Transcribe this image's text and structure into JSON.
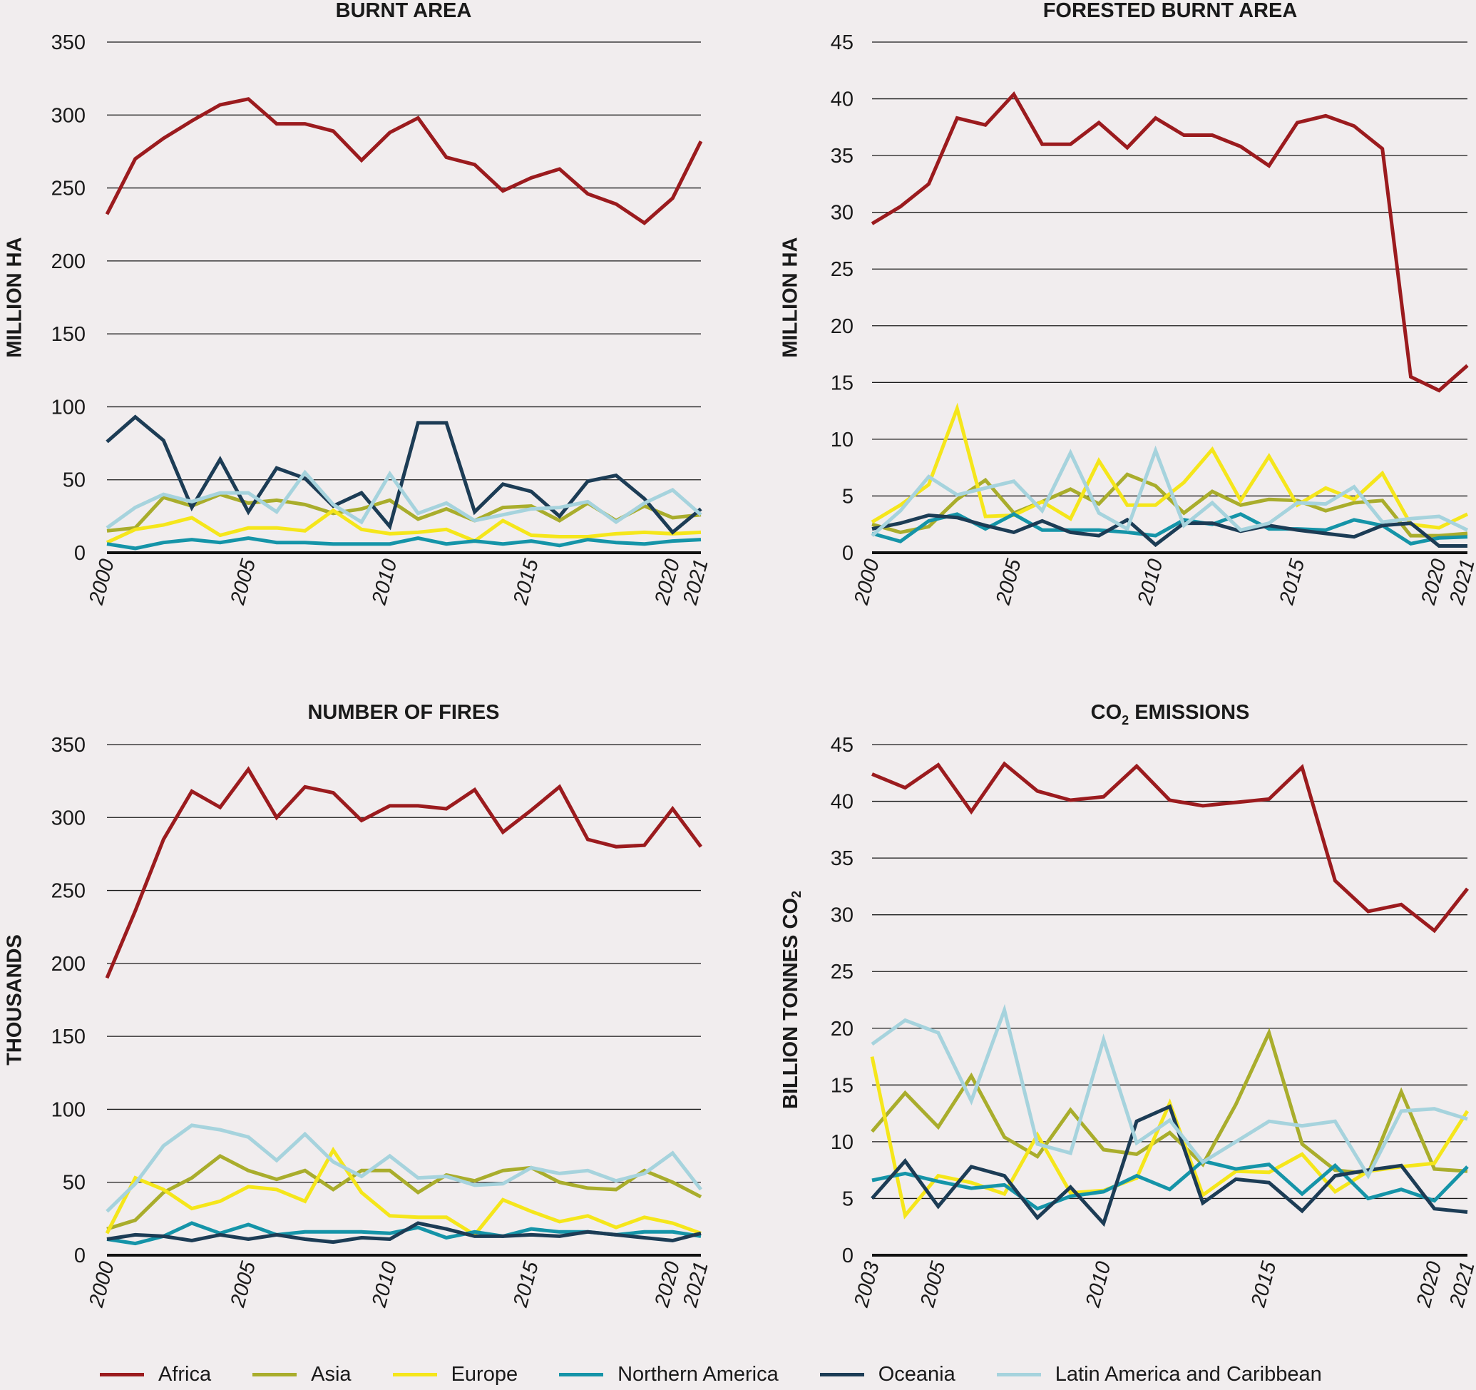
{
  "legend": [
    {
      "name": "Africa",
      "color": "#9b1b1e"
    },
    {
      "name": "Asia",
      "color": "#a9ad2c"
    },
    {
      "name": "Europe",
      "color": "#f5e61b"
    },
    {
      "name": "Northern America",
      "color": "#1594a8"
    },
    {
      "name": "Oceania",
      "color": "#1c3c55"
    },
    {
      "name": "Latin America and Caribbean",
      "color": "#a6d3dd"
    }
  ],
  "chart_data": [
    {
      "type": "line",
      "title": "BURNT AREA",
      "ylabel": "MILLION HA",
      "ylim": [
        0,
        350
      ],
      "yticks": [
        0,
        50,
        100,
        150,
        200,
        250,
        300,
        350
      ],
      "xlim": [
        2000,
        2021
      ],
      "xticks": [
        2000,
        2005,
        2010,
        2015,
        2020,
        2021
      ],
      "x": [
        2000,
        2001,
        2002,
        2003,
        2004,
        2005,
        2006,
        2007,
        2008,
        2009,
        2010,
        2011,
        2012,
        2013,
        2014,
        2015,
        2016,
        2017,
        2018,
        2019,
        2020,
        2021
      ],
      "series": [
        {
          "name": "Africa",
          "values": [
            232,
            270,
            284,
            296,
            307,
            311,
            294,
            294,
            289,
            269,
            288,
            298,
            271,
            266,
            248,
            257,
            263,
            246,
            239,
            226,
            243,
            282
          ]
        },
        {
          "name": "Asia",
          "values": [
            15,
            17,
            38,
            32,
            40,
            34,
            36,
            33,
            27,
            30,
            36,
            23,
            30,
            22,
            31,
            32,
            22,
            34,
            22,
            32,
            24,
            26
          ]
        },
        {
          "name": "Europe",
          "values": [
            7,
            16,
            19,
            24,
            12,
            17,
            17,
            15,
            29,
            16,
            13,
            14,
            16,
            8,
            22,
            12,
            11,
            11,
            13,
            14,
            13,
            14
          ]
        },
        {
          "name": "Northern America",
          "values": [
            6,
            3,
            7,
            9,
            7,
            10,
            7,
            7,
            6,
            6,
            6,
            10,
            6,
            8,
            6,
            8,
            5,
            9,
            7,
            6,
            8,
            9
          ]
        },
        {
          "name": "Oceania",
          "values": [
            76,
            93,
            77,
            31,
            64,
            28,
            58,
            51,
            32,
            41,
            18,
            89,
            89,
            28,
            47,
            42,
            25,
            49,
            53,
            37,
            14,
            30
          ]
        },
        {
          "name": "Latin America and Caribbean",
          "values": [
            17,
            31,
            40,
            35,
            41,
            41,
            28,
            55,
            33,
            21,
            54,
            27,
            34,
            22,
            26,
            30,
            31,
            35,
            21,
            34,
            43,
            26
          ]
        }
      ]
    },
    {
      "type": "line",
      "title": "FORESTED BURNT AREA",
      "ylabel": "MILLION HA",
      "ylim": [
        0,
        45
      ],
      "yticks": [
        0,
        5,
        10,
        15,
        20,
        25,
        30,
        35,
        40,
        45
      ],
      "xlim": [
        2000,
        2021
      ],
      "xticks": [
        2000,
        2005,
        2010,
        2015,
        2020,
        2021
      ],
      "x": [
        2000,
        2001,
        2002,
        2003,
        2004,
        2005,
        2006,
        2007,
        2008,
        2009,
        2010,
        2011,
        2012,
        2013,
        2014,
        2015,
        2016,
        2017,
        2018,
        2019,
        2020,
        2021
      ],
      "series": [
        {
          "name": "Africa",
          "values": [
            29,
            30.5,
            32.5,
            38.3,
            37.7,
            40.4,
            36,
            36,
            37.9,
            35.7,
            38.3,
            36.8,
            36.8,
            35.8,
            34.1,
            37.9,
            38.5,
            37.6,
            35.6,
            15.5,
            14.3,
            16.5
          ]
        },
        {
          "name": "Asia",
          "values": [
            2.5,
            1.8,
            2.3,
            4.7,
            6.4,
            3.5,
            4.5,
            5.6,
            4.3,
            6.9,
            5.9,
            3.5,
            5.4,
            4.2,
            4.7,
            4.6,
            3.7,
            4.4,
            4.6,
            1.5,
            1.5,
            1.7
          ]
        },
        {
          "name": "Europe",
          "values": [
            2.7,
            4.2,
            6.0,
            12.7,
            3.2,
            3.3,
            4.5,
            3.0,
            8.1,
            4.2,
            4.2,
            6.2,
            9.1,
            4.6,
            8.5,
            4.2,
            5.7,
            4.7,
            7.0,
            2.5,
            2.2,
            3.4
          ]
        },
        {
          "name": "Northern America",
          "values": [
            1.7,
            1.0,
            2.8,
            3.4,
            2.1,
            3.4,
            2.0,
            2.0,
            2.0,
            1.8,
            1.5,
            2.9,
            2.5,
            3.4,
            2.1,
            2.1,
            2.0,
            2.9,
            2.4,
            0.8,
            1.3,
            1.4
          ]
        },
        {
          "name": "Oceania",
          "values": [
            2.1,
            2.6,
            3.3,
            3.1,
            2.4,
            1.8,
            2.8,
            1.8,
            1.5,
            2.9,
            0.7,
            2.6,
            2.6,
            1.9,
            2.4,
            2.0,
            1.7,
            1.4,
            2.4,
            2.6,
            0.6,
            0.6
          ]
        },
        {
          "name": "Latin America and Caribbean",
          "values": [
            1.5,
            3.7,
            6.7,
            5.1,
            5.7,
            6.3,
            3.7,
            8.8,
            3.5,
            2.1,
            9.0,
            2.4,
            4.4,
            2.0,
            2.6,
            4.4,
            4.3,
            5.8,
            2.7,
            3.0,
            3.2,
            2.0
          ]
        }
      ]
    },
    {
      "type": "line",
      "title": "NUMBER OF FIRES",
      "ylabel": "THOUSANDS",
      "ylim": [
        0,
        350
      ],
      "yticks": [
        0,
        50,
        100,
        150,
        200,
        250,
        300,
        350
      ],
      "xlim": [
        2000,
        2021
      ],
      "xticks": [
        2000,
        2005,
        2010,
        2015,
        2020,
        2021
      ],
      "x": [
        2000,
        2001,
        2002,
        2003,
        2004,
        2005,
        2006,
        2007,
        2008,
        2009,
        2010,
        2011,
        2012,
        2013,
        2014,
        2015,
        2016,
        2017,
        2018,
        2019,
        2020,
        2021
      ],
      "series": [
        {
          "name": "Africa",
          "values": [
            190,
            236,
            285,
            318,
            307,
            333,
            300,
            321,
            317,
            298,
            308,
            308,
            306,
            319,
            290,
            305,
            321,
            285,
            280,
            281,
            306,
            280
          ]
        },
        {
          "name": "Asia",
          "values": [
            18,
            24,
            43,
            53,
            68,
            58,
            52,
            58,
            45,
            58,
            58,
            43,
            55,
            51,
            58,
            60,
            50,
            46,
            45,
            58,
            50,
            40
          ]
        },
        {
          "name": "Europe",
          "values": [
            15,
            53,
            45,
            32,
            37,
            47,
            45,
            37,
            72,
            43,
            27,
            26,
            26,
            14,
            38,
            30,
            23,
            27,
            19,
            26,
            22,
            15
          ]
        },
        {
          "name": "Northern America",
          "values": [
            11,
            8,
            13,
            22,
            15,
            21,
            14,
            16,
            16,
            16,
            15,
            19,
            12,
            16,
            13,
            18,
            16,
            16,
            14,
            16,
            16,
            13
          ]
        },
        {
          "name": "Oceania",
          "values": [
            11,
            14,
            13,
            10,
            14,
            11,
            14,
            11,
            9,
            12,
            11,
            22,
            18,
            13,
            13,
            14,
            13,
            16,
            14,
            12,
            10,
            15
          ]
        },
        {
          "name": "Latin America and Caribbean",
          "values": [
            30,
            49,
            75,
            89,
            86,
            81,
            65,
            83,
            64,
            54,
            68,
            53,
            54,
            48,
            49,
            60,
            56,
            58,
            51,
            56,
            70,
            45
          ]
        }
      ]
    },
    {
      "type": "line",
      "title": "CO2 EMISSIONS",
      "title_main": "CO",
      "title_sub": "2",
      "title_rest": " EMISSIONS",
      "ylabel": "BILLION TONNES CO2",
      "ylabel_main": "BILLION TONNES CO",
      "ylabel_sub": "2",
      "ylim": [
        0,
        45
      ],
      "yticks": [
        0,
        5,
        10,
        15,
        20,
        25,
        30,
        35,
        40,
        45
      ],
      "xlim": [
        2003,
        2021
      ],
      "xticks": [
        2003,
        2005,
        2010,
        2015,
        2020,
        2021
      ],
      "x": [
        2003,
        2004,
        2005,
        2006,
        2007,
        2008,
        2009,
        2010,
        2011,
        2012,
        2013,
        2014,
        2015,
        2016,
        2017,
        2018,
        2019,
        2020,
        2021
      ],
      "series": [
        {
          "name": "Africa",
          "values": [
            42.4,
            41.2,
            43.2,
            39.1,
            43.3,
            40.9,
            40.1,
            40.4,
            43.1,
            40.1,
            39.6,
            39.9,
            40.2,
            43.0,
            33.0,
            30.3,
            30.9,
            28.6,
            32.3
          ]
        },
        {
          "name": "Asia",
          "values": [
            10.9,
            14.3,
            11.3,
            15.8,
            10.4,
            8.7,
            12.8,
            9.3,
            8.9,
            10.8,
            8.0,
            13.3,
            19.6,
            9.8,
            7.5,
            7.2,
            14.4,
            7.6,
            7.4
          ]
        },
        {
          "name": "Europe",
          "values": [
            17.5,
            3.5,
            7.0,
            6.4,
            5.4,
            10.6,
            5.5,
            5.7,
            6.8,
            13.4,
            5.3,
            7.4,
            7.3,
            8.9,
            5.6,
            7.4,
            7.8,
            8.1,
            12.7
          ]
        },
        {
          "name": "Northern America",
          "values": [
            6.6,
            7.2,
            6.5,
            5.9,
            6.2,
            4.1,
            5.2,
            5.6,
            7.0,
            5.8,
            8.3,
            7.6,
            8.0,
            5.4,
            7.9,
            5.0,
            5.8,
            4.8,
            7.8
          ]
        },
        {
          "name": "Oceania",
          "values": [
            5.0,
            8.3,
            4.3,
            7.8,
            7.0,
            3.3,
            6.0,
            2.8,
            11.8,
            13.1,
            4.6,
            6.7,
            6.4,
            3.9,
            7.0,
            7.5,
            7.9,
            4.1,
            3.8
          ]
        },
        {
          "name": "Latin America and Caribbean",
          "values": [
            18.6,
            20.7,
            19.6,
            13.6,
            21.6,
            9.8,
            9.0,
            19.0,
            9.9,
            11.9,
            8.2,
            10.0,
            11.8,
            11.4,
            11.8,
            7.0,
            12.7,
            12.9,
            12.0
          ]
        }
      ]
    }
  ]
}
